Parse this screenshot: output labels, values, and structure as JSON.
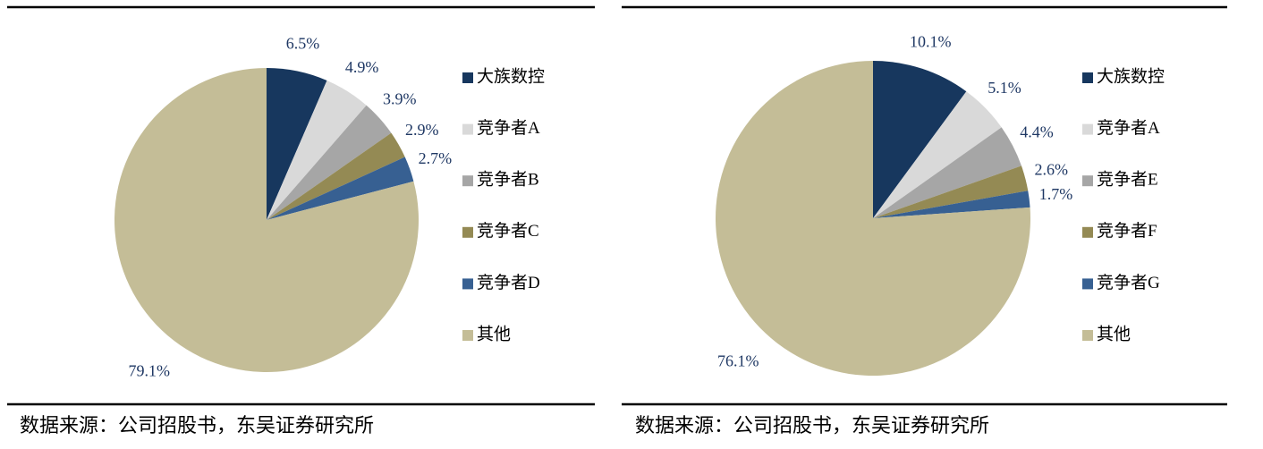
{
  "chart_data": [
    {
      "type": "pie",
      "categories": [
        "大族数控",
        "竞争者A",
        "竞争者B",
        "竞争者C",
        "竞争者D",
        "其他"
      ],
      "values": [
        6.5,
        4.9,
        3.9,
        2.9,
        2.7,
        79.1
      ],
      "value_labels": [
        "6.5%",
        "4.9%",
        "3.9%",
        "2.9%",
        "2.7%",
        "79.1%"
      ],
      "colors": [
        "#17375e",
        "#d9d9d9",
        "#a6a6a6",
        "#948a54",
        "#376092",
        "#c4bd97"
      ],
      "source": "数据来源：公司招股书，东吴证券研究所"
    },
    {
      "type": "pie",
      "categories": [
        "大族数控",
        "竞争者A",
        "竞争者E",
        "竞争者F",
        "竞争者G",
        "其他"
      ],
      "values": [
        10.1,
        5.1,
        4.4,
        2.6,
        1.7,
        76.1
      ],
      "value_labels": [
        "10.1%",
        "5.1%",
        "4.4%",
        "2.6%",
        "1.7%",
        "76.1%"
      ],
      "colors": [
        "#17375e",
        "#d9d9d9",
        "#a6a6a6",
        "#948a54",
        "#376092",
        "#c4bd97"
      ],
      "source": "数据来源：公司招股书，东吴证券研究所"
    }
  ]
}
